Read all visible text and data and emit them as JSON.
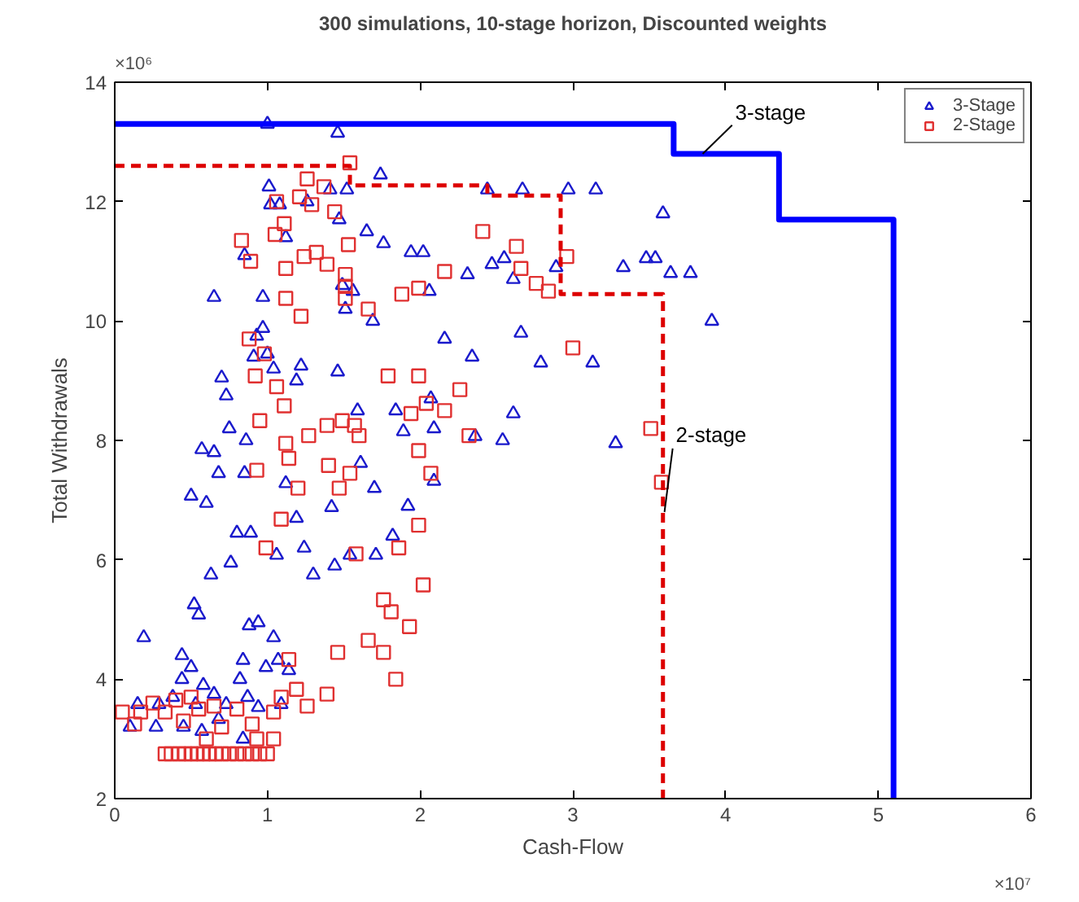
{
  "chart_data": {
    "type": "scatter",
    "title": "300 simulations, 10-stage horizon, Discounted weights",
    "xlabel": "Cash-Flow",
    "ylabel": "Total Withdrawals",
    "xlim": [
      0,
      6
    ],
    "ylim": [
      2,
      14
    ],
    "xticks": [
      0,
      1,
      2,
      3,
      4,
      5,
      6
    ],
    "yticks": [
      2,
      4,
      6,
      8,
      10,
      12,
      14
    ],
    "grid": false,
    "legend": "top right",
    "annotations": [
      {
        "text": "3-stage",
        "x": 3.85,
        "y": 12.8
      },
      {
        "text": "2-stage",
        "x": 3.6,
        "y": 6.8
      },
      "×10⁶",
      "×10⁷"
    ],
    "series": [
      {
        "name": "3-Stage",
        "marker": "triangle",
        "color": "#1a1acc",
        "x": [
          1.0,
          1.46,
          1.74,
          1.01,
          1.08,
          1.02,
          1.26,
          1.41,
          1.52,
          2.44,
          2.67,
          2.97,
          3.15,
          3.59,
          1.47,
          1.12,
          1.65,
          1.76,
          0.85,
          1.94,
          2.02,
          2.31,
          2.47,
          2.55,
          2.61,
          2.89,
          3.33,
          3.48,
          3.54,
          3.64,
          3.91,
          3.77,
          0.97,
          1.56,
          1.49,
          1.69,
          1.51,
          2.06,
          2.66,
          0.97,
          0.93,
          0.65,
          2.16,
          2.34,
          2.79,
          3.13,
          3.28,
          2.61,
          2.54,
          2.07,
          1.84,
          1.89,
          1.59,
          1.46,
          1.22,
          1.19,
          1.04,
          1.0,
          0.91,
          0.7,
          0.73,
          0.75,
          0.65,
          0.68,
          0.85,
          0.57,
          0.86,
          0.5,
          0.6,
          0.8,
          0.89,
          1.06,
          1.19,
          1.12,
          1.61,
          1.7,
          1.42,
          1.24,
          1.3,
          1.44,
          1.54,
          1.71,
          1.92,
          1.82,
          2.09,
          2.36,
          2.09,
          0.76,
          0.63,
          0.52,
          0.55,
          0.19,
          0.88,
          0.94,
          0.84,
          1.04,
          1.07,
          1.14,
          0.99,
          0.44,
          0.82,
          0.5,
          0.15,
          0.1,
          0.27,
          0.38,
          0.44,
          0.58,
          0.65,
          0.73,
          0.87,
          0.94,
          1.09,
          0.53,
          0.29,
          0.45,
          0.84,
          0.57,
          0.68
        ],
        "values": [
          13.3,
          13.15,
          12.45,
          12.25,
          11.95,
          11.95,
          12.0,
          12.2,
          12.2,
          12.2,
          12.2,
          12.2,
          12.2,
          11.8,
          11.7,
          11.4,
          11.5,
          11.3,
          11.1,
          11.15,
          11.15,
          10.78,
          10.95,
          11.05,
          10.7,
          10.9,
          10.9,
          11.05,
          11.05,
          10.8,
          10.0,
          10.8,
          10.4,
          10.5,
          10.6,
          10.0,
          10.2,
          10.5,
          9.8,
          9.88,
          9.75,
          10.4,
          9.7,
          9.4,
          9.3,
          9.3,
          7.95,
          8.45,
          8.0,
          8.7,
          8.5,
          8.15,
          8.5,
          9.15,
          9.25,
          9.0,
          9.2,
          9.45,
          9.4,
          9.05,
          8.75,
          8.2,
          7.8,
          7.45,
          7.45,
          7.85,
          8.0,
          7.07,
          6.95,
          6.45,
          6.45,
          6.08,
          6.7,
          7.28,
          7.62,
          7.2,
          6.88,
          6.2,
          5.75,
          5.9,
          6.08,
          6.08,
          6.9,
          6.4,
          7.32,
          8.07,
          8.2,
          5.95,
          5.75,
          5.25,
          5.08,
          4.7,
          4.9,
          4.95,
          4.32,
          4.7,
          4.32,
          4.15,
          4.2,
          4.4,
          4.0,
          4.2,
          3.58,
          3.2,
          3.2,
          3.7,
          4.0,
          3.9,
          3.75,
          3.58,
          3.7,
          3.53,
          3.58,
          3.58,
          3.58,
          3.2,
          3.0,
          3.13,
          3.33
        ]
      },
      {
        "name": "2-Stage",
        "marker": "square",
        "color": "#e03030",
        "x": [
          1.54,
          1.26,
          1.37,
          1.21,
          1.11,
          1.06,
          1.29,
          1.44,
          0.83,
          1.05,
          1.53,
          1.24,
          1.32,
          1.39,
          1.51,
          1.51,
          0.89,
          1.12,
          1.12,
          1.22,
          1.51,
          1.66,
          1.88,
          1.99,
          2.16,
          2.41,
          2.63,
          2.66,
          2.84,
          2.76,
          2.96,
          3.0,
          3.51,
          3.58,
          0.88,
          0.98,
          0.92,
          1.06,
          1.11,
          0.95,
          1.12,
          1.14,
          1.27,
          1.39,
          1.49,
          1.57,
          1.6,
          1.79,
          1.99,
          1.94,
          2.26,
          2.04,
          1.99,
          2.16,
          2.32,
          2.07,
          1.47,
          1.54,
          1.4,
          0.93,
          1.2,
          1.09,
          0.99,
          1.58,
          1.86,
          2.02,
          1.99,
          1.76,
          1.81,
          1.93,
          1.76,
          1.84,
          1.66,
          1.46,
          1.39,
          1.26,
          1.19,
          1.14,
          1.09,
          1.04,
          0.65,
          0.33,
          0.17,
          0.05,
          0.13,
          0.7,
          0.6,
          0.93,
          1.04,
          0.25,
          0.4,
          0.5,
          0.55,
          0.8,
          0.9,
          0.45,
          0.33,
          0.37,
          0.42,
          0.46,
          0.5,
          0.54,
          0.58,
          0.62,
          0.66,
          0.7,
          0.75,
          0.8,
          0.85,
          0.9,
          0.95,
          1.0
        ],
        "values": [
          12.65,
          12.38,
          12.25,
          12.08,
          11.63,
          12.0,
          11.95,
          11.83,
          11.35,
          11.45,
          11.28,
          11.08,
          11.15,
          10.95,
          10.78,
          10.58,
          11.0,
          10.88,
          10.38,
          10.08,
          10.38,
          10.2,
          10.45,
          10.55,
          10.83,
          11.5,
          11.25,
          10.88,
          10.5,
          10.63,
          11.08,
          9.55,
          8.2,
          7.3,
          9.7,
          9.45,
          9.08,
          8.9,
          8.58,
          8.33,
          7.95,
          7.7,
          8.08,
          8.25,
          8.33,
          8.25,
          8.08,
          9.08,
          9.08,
          8.45,
          8.85,
          8.62,
          7.83,
          8.5,
          8.08,
          7.45,
          7.2,
          7.45,
          7.58,
          7.5,
          7.2,
          6.68,
          6.2,
          6.1,
          6.2,
          5.58,
          6.58,
          5.33,
          5.13,
          4.88,
          4.45,
          4.0,
          4.65,
          4.45,
          3.75,
          3.55,
          3.83,
          4.33,
          3.7,
          3.45,
          3.55,
          3.45,
          3.45,
          3.45,
          3.25,
          3.2,
          3.0,
          3.0,
          3.0,
          3.6,
          3.65,
          3.7,
          3.5,
          3.5,
          3.25,
          3.3,
          2.75,
          2.75,
          2.75,
          2.75,
          2.75,
          2.75,
          2.75,
          2.75,
          2.75,
          2.75,
          2.75,
          2.75,
          2.75,
          2.75,
          2.75,
          2.75
        ]
      },
      {
        "type": "line",
        "marker": "none",
        "line_style": "solid",
        "color": "#0000ff",
        "x": [
          0,
          3.66,
          3.66,
          4.35,
          4.35,
          5.1,
          5.1
        ],
        "values": [
          13.3,
          13.3,
          12.8,
          12.8,
          11.7,
          11.7,
          2
        ]
      },
      {
        "type": "line",
        "marker": "none",
        "line_style": "dashed",
        "color": "#dd0000",
        "x": [
          0,
          1.54,
          1.54,
          2.44,
          2.44,
          2.92,
          2.92,
          3.59,
          3.59
        ],
        "values": [
          12.6,
          12.6,
          12.27,
          12.27,
          12.1,
          12.1,
          10.45,
          10.45,
          2
        ]
      }
    ]
  }
}
